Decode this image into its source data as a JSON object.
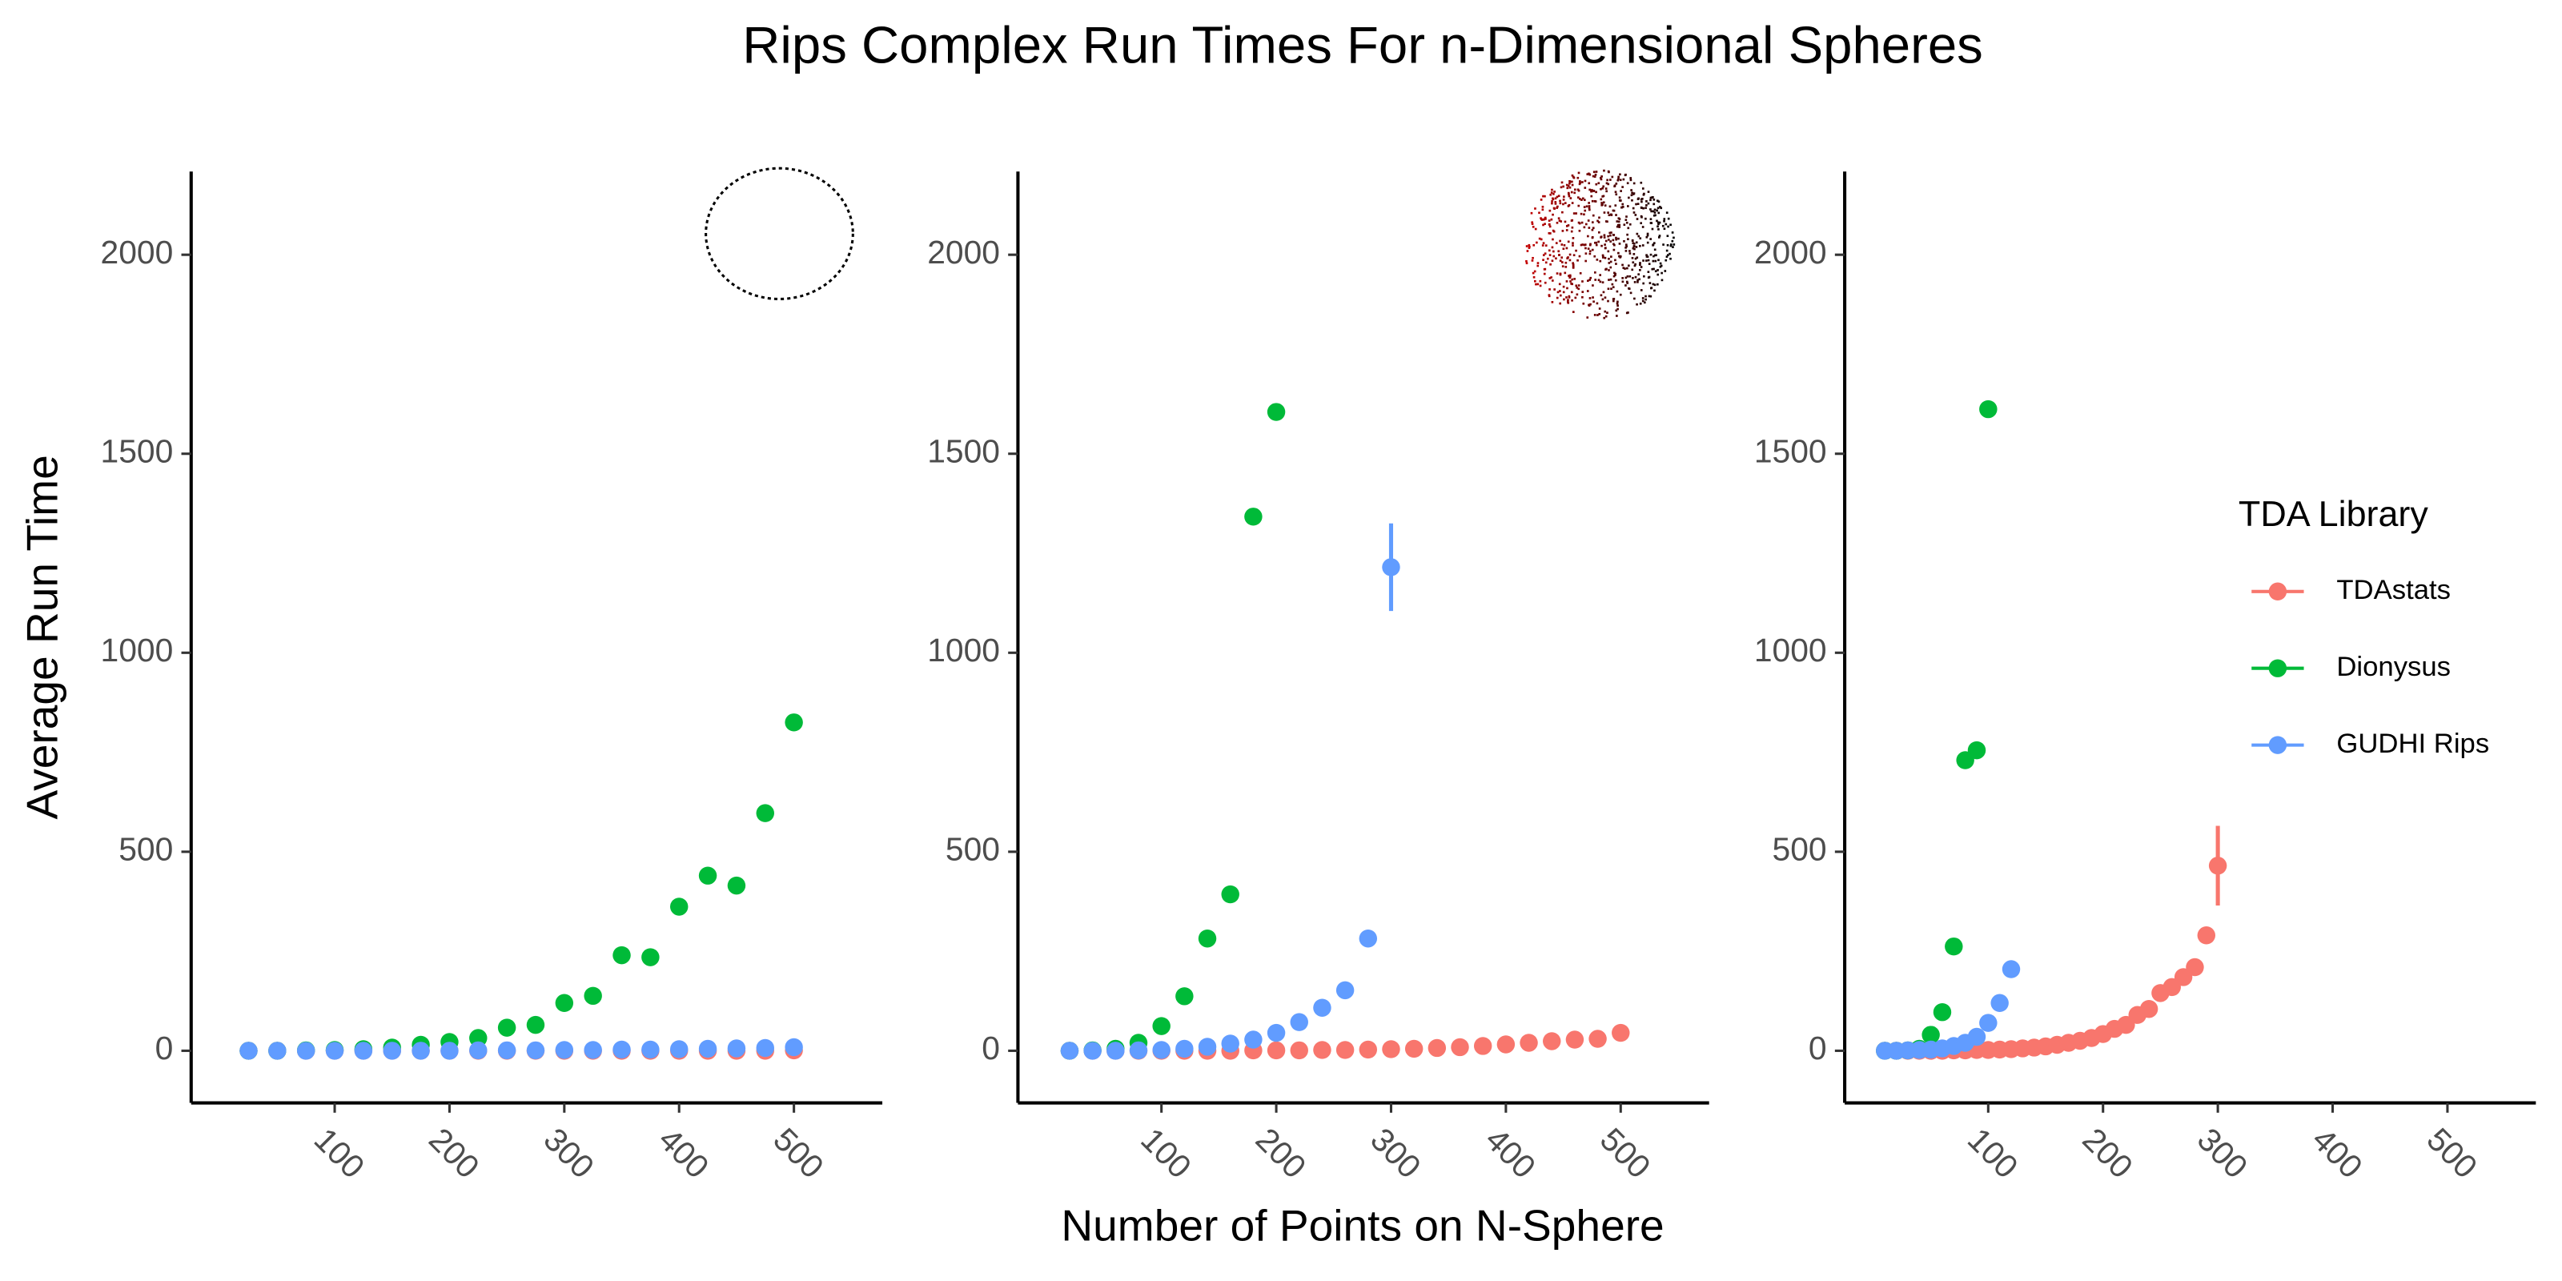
{
  "title": "Rips Complex Run Times For n-Dimensional Spheres",
  "y_label": "Average Run Time",
  "x_label": "Number of Points on N-Sphere",
  "legend": {
    "title": "TDA Library"
  },
  "chart_data": [
    {
      "type": "scatter",
      "xlim": [
        -25,
        577
      ],
      "ylim": [
        -131,
        2209
      ],
      "xticks": [
        100,
        200,
        300,
        400,
        500
      ],
      "yticks": [
        0,
        500,
        1000,
        1500,
        2000
      ],
      "series": [
        {
          "name": "TDAstats",
          "color": "#F8766D",
          "x": [
            25,
            50,
            75,
            100,
            125,
            150,
            175,
            200,
            225,
            250,
            275,
            300,
            325,
            350,
            375,
            400,
            425,
            450,
            475,
            500
          ],
          "values": [
            0,
            0,
            0,
            0,
            0,
            0,
            0,
            0,
            0,
            0,
            0,
            0,
            0,
            0,
            0,
            0,
            0,
            0,
            0,
            1
          ]
        },
        {
          "name": "Dionysus",
          "color": "#00BA38",
          "x": [
            25,
            50,
            75,
            100,
            125,
            150,
            175,
            200,
            225,
            250,
            275,
            300,
            325,
            350,
            375,
            400,
            425,
            450,
            475,
            500
          ],
          "values": [
            0,
            0,
            1,
            2,
            4,
            8,
            15,
            22,
            32,
            58,
            65,
            120,
            138,
            240,
            235,
            362,
            440,
            415,
            597,
            825
          ]
        },
        {
          "name": "GUDHI Rips",
          "color": "#619CFF",
          "x": [
            25,
            50,
            75,
            100,
            125,
            150,
            175,
            200,
            225,
            250,
            275,
            300,
            325,
            350,
            375,
            400,
            425,
            450,
            475,
            500
          ],
          "values": [
            0,
            0,
            0,
            0,
            0,
            0,
            0,
            0,
            1,
            1,
            1,
            2,
            2,
            3,
            3,
            4,
            5,
            6,
            7,
            9
          ]
        }
      ]
    },
    {
      "type": "scatter",
      "xlim": [
        -25,
        577
      ],
      "ylim": [
        -131,
        2209
      ],
      "xticks": [
        100,
        200,
        300,
        400,
        500
      ],
      "yticks": [
        0,
        500,
        1000,
        1500,
        2000
      ],
      "series": [
        {
          "name": "TDAstats",
          "color": "#F8766D",
          "x": [
            20,
            40,
            60,
            80,
            100,
            120,
            140,
            160,
            180,
            200,
            220,
            240,
            260,
            280,
            300,
            320,
            340,
            360,
            380,
            400,
            420,
            440,
            460,
            480,
            500
          ],
          "values": [
            0,
            0,
            0,
            0,
            0,
            0,
            0,
            0,
            1,
            1,
            1,
            2,
            2,
            3,
            4,
            5,
            7,
            9,
            12,
            16,
            20,
            24,
            28,
            30,
            45
          ]
        },
        {
          "name": "Dionysus",
          "color": "#00BA38",
          "x": [
            20,
            40,
            60,
            80,
            100,
            120,
            140,
            160,
            180,
            200
          ],
          "values": [
            0,
            1,
            5,
            20,
            62,
            137,
            282,
            393,
            1342,
            1605
          ]
        },
        {
          "name": "GUDHI Rips",
          "color": "#619CFF",
          "x": [
            20,
            40,
            60,
            80,
            100,
            120,
            140,
            160,
            180,
            200,
            220,
            240,
            260,
            280,
            300
          ],
          "values": [
            0,
            0,
            0,
            1,
            2,
            5,
            10,
            18,
            28,
            45,
            72,
            108,
            152,
            282,
            1215
          ],
          "errors": [
            null,
            null,
            null,
            null,
            null,
            null,
            null,
            null,
            null,
            null,
            null,
            null,
            null,
            null,
            110
          ]
        }
      ]
    },
    {
      "type": "scatter",
      "xlim": [
        -25,
        577
      ],
      "ylim": [
        -131,
        2209
      ],
      "xticks": [
        100,
        200,
        300,
        400,
        500
      ],
      "yticks": [
        0,
        500,
        1000,
        1500,
        2000
      ],
      "series": [
        {
          "name": "TDAstats",
          "color": "#F8766D",
          "x": [
            10,
            20,
            30,
            40,
            50,
            60,
            70,
            80,
            90,
            100,
            110,
            120,
            130,
            140,
            150,
            160,
            170,
            180,
            190,
            200,
            210,
            220,
            230,
            240,
            250,
            260,
            270,
            280,
            290,
            300
          ],
          "values": [
            0,
            0,
            0,
            0,
            0,
            0,
            1,
            1,
            2,
            2,
            3,
            4,
            6,
            8,
            11,
            15,
            20,
            25,
            32,
            42,
            55,
            65,
            90,
            105,
            145,
            160,
            185,
            210,
            290,
            465
          ],
          "errors": [
            null,
            null,
            null,
            null,
            null,
            null,
            null,
            null,
            null,
            null,
            null,
            null,
            null,
            null,
            null,
            null,
            null,
            null,
            null,
            null,
            null,
            null,
            null,
            null,
            null,
            null,
            null,
            null,
            null,
            100
          ]
        },
        {
          "name": "Dionysus",
          "color": "#00BA38",
          "x": [
            10,
            20,
            30,
            40,
            50,
            60,
            70,
            80,
            90,
            100
          ],
          "values": [
            0,
            0,
            1,
            5,
            40,
            97,
            262,
            730,
            755,
            1612
          ]
        },
        {
          "name": "GUDHI Rips",
          "color": "#619CFF",
          "x": [
            10,
            20,
            30,
            40,
            50,
            60,
            70,
            80,
            90,
            100,
            110,
            120
          ],
          "values": [
            0,
            0,
            1,
            2,
            3,
            6,
            12,
            20,
            35,
            70,
            120,
            205
          ]
        }
      ]
    }
  ]
}
